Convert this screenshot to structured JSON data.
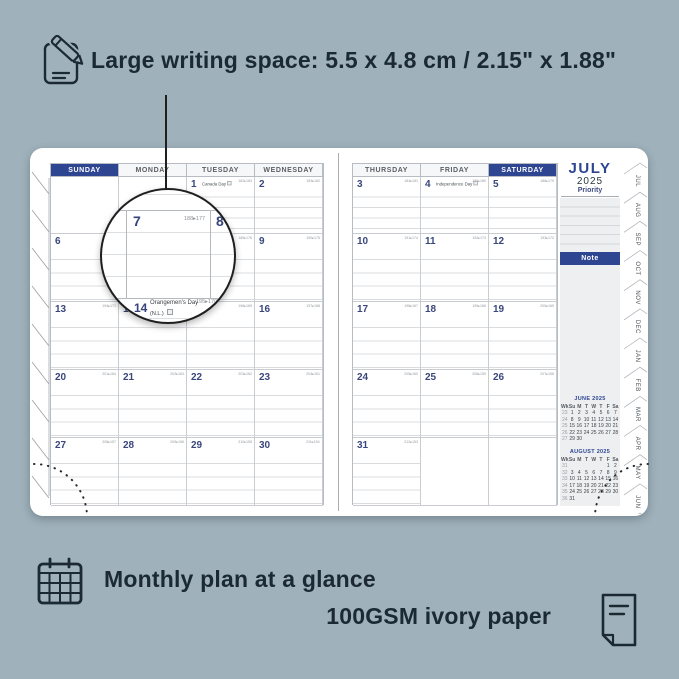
{
  "captions": {
    "top": "Large writing space: 5.5 x 4.8 cm / 2.15\" x 1.88\"",
    "bottom_left": "Monthly plan at a glance",
    "bottom_right": "100GSM ivory paper"
  },
  "colors": {
    "background": "#9fb1bb",
    "accent_navy": "#2e4592",
    "caption_text": "#1b2a32"
  },
  "planner": {
    "sidebar": {
      "month": "JULY",
      "year": "2025",
      "priority": "Priority",
      "note": "Note",
      "mini_calendars": [
        {
          "title": "JUNE 2025",
          "header": [
            "Wk",
            "Su",
            "M",
            "T",
            "W",
            "T",
            "F",
            "Sa"
          ],
          "rows": [
            [
              "23",
              "1",
              "2",
              "3",
              "4",
              "5",
              "6",
              "7"
            ],
            [
              "24",
              "8",
              "9",
              "10",
              "11",
              "12",
              "13",
              "14"
            ],
            [
              "25",
              "15",
              "16",
              "17",
              "18",
              "19",
              "20",
              "21"
            ],
            [
              "26",
              "22",
              "23",
              "24",
              "25",
              "26",
              "27",
              "28"
            ],
            [
              "27",
              "29",
              "30",
              "",
              "",
              "",
              "",
              ""
            ]
          ]
        },
        {
          "title": "AUGUST 2025",
          "header": [
            "Wk",
            "Su",
            "M",
            "T",
            "W",
            "T",
            "F",
            "Sa"
          ],
          "rows": [
            [
              "31",
              "",
              "",
              "",
              "",
              "",
              "1",
              "2"
            ],
            [
              "32",
              "3",
              "4",
              "5",
              "6",
              "7",
              "8",
              "9"
            ],
            [
              "33",
              "10",
              "11",
              "12",
              "13",
              "14",
              "15",
              "16"
            ],
            [
              "34",
              "17",
              "18",
              "19",
              "20",
              "21",
              "22",
              "23"
            ],
            [
              "35",
              "24",
              "25",
              "26",
              "27",
              "28",
              "29",
              "30"
            ],
            [
              "36",
              "31",
              "",
              "",
              "",
              "",
              "",
              ""
            ]
          ]
        }
      ]
    },
    "tabs": [
      "JUL",
      "AUG",
      "SEP",
      "OCT",
      "NOV",
      "DEC",
      "JAN",
      "FEB",
      "MAR",
      "APR",
      "MAY",
      "JUN"
    ],
    "left_page": {
      "headers": [
        {
          "label": "SUNDAY",
          "highlight": true
        },
        {
          "label": "MONDAY",
          "highlight": false
        },
        {
          "label": "TUESDAY",
          "highlight": false
        },
        {
          "label": "WEDNESDAY",
          "highlight": false
        }
      ],
      "rows": [
        [
          {
            "day": "",
            "doy": "",
            "nolines": true
          },
          {
            "day": "",
            "doy": "",
            "nolines": true
          },
          {
            "day": "1",
            "doy": "182▸183",
            "holiday": "Canada Day"
          },
          {
            "day": "2",
            "doy": "183▸182"
          }
        ],
        [
          {
            "day": "6",
            "doy": "187▸178"
          },
          {
            "day": "7",
            "doy": "188▸177"
          },
          {
            "day": "8",
            "doy": "189▸176"
          },
          {
            "day": "9",
            "doy": "190▸175"
          }
        ],
        [
          {
            "day": "13",
            "doy": "194▸171"
          },
          {
            "day": "14",
            "doy": "195▸170",
            "holiday": "Orangemen's Day (N.L.)"
          },
          {
            "day": "15",
            "doy": "196▸169"
          },
          {
            "day": "16",
            "doy": "197▸168"
          }
        ],
        [
          {
            "day": "20",
            "doy": "201▸164"
          },
          {
            "day": "21",
            "doy": "202▸163"
          },
          {
            "day": "22",
            "doy": "203▸162"
          },
          {
            "day": "23",
            "doy": "204▸161"
          }
        ],
        [
          {
            "day": "27",
            "doy": "208▸157"
          },
          {
            "day": "28",
            "doy": "209▸156"
          },
          {
            "day": "29",
            "doy": "210▸155"
          },
          {
            "day": "30",
            "doy": "211▸154"
          }
        ]
      ]
    },
    "right_page": {
      "headers": [
        {
          "label": "THURSDAY",
          "highlight": false
        },
        {
          "label": "FRIDAY",
          "highlight": false
        },
        {
          "label": "SATURDAY",
          "highlight": true
        }
      ],
      "rows": [
        [
          {
            "day": "3",
            "doy": "184▸181"
          },
          {
            "day": "4",
            "doy": "185▸180",
            "holiday": "Independence Day"
          },
          {
            "day": "5",
            "doy": "186▸179"
          }
        ],
        [
          {
            "day": "10",
            "doy": "191▸174"
          },
          {
            "day": "11",
            "doy": "192▸173"
          },
          {
            "day": "12",
            "doy": "193▸172"
          }
        ],
        [
          {
            "day": "17",
            "doy": "198▸167"
          },
          {
            "day": "18",
            "doy": "199▸166"
          },
          {
            "day": "19",
            "doy": "200▸165"
          }
        ],
        [
          {
            "day": "24",
            "doy": "205▸160"
          },
          {
            "day": "25",
            "doy": "206▸159"
          },
          {
            "day": "26",
            "doy": "207▸158"
          }
        ],
        [
          {
            "day": "31",
            "doy": "212▸153"
          },
          {
            "day": "",
            "doy": "",
            "nolines": true
          },
          {
            "day": "",
            "doy": "",
            "nolines": true
          }
        ]
      ]
    },
    "magnifier": {
      "day_a": "7",
      "doy_a": "188▸177",
      "day_b": "8",
      "day_c": "14",
      "holiday": "Orangemen's Day",
      "holiday_region": "(N.L.)",
      "doy_c": "195▸170"
    }
  }
}
